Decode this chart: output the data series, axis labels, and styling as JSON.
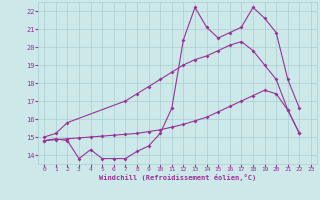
{
  "background_color": "#cce8e8",
  "grid_color": "#aacfcf",
  "line_color": "#993399",
  "xlabel": "Windchill (Refroidissement éolien,°C)",
  "ylim": [
    13.5,
    22.5
  ],
  "xlim": [
    -0.5,
    23.5
  ],
  "yticks": [
    14,
    15,
    16,
    17,
    18,
    19,
    20,
    21,
    22
  ],
  "xticks": [
    0,
    1,
    2,
    3,
    4,
    5,
    6,
    7,
    8,
    9,
    10,
    11,
    12,
    13,
    14,
    15,
    16,
    17,
    18,
    19,
    20,
    21,
    22,
    23
  ],
  "s1_x": [
    0,
    1,
    2,
    3,
    4,
    5,
    6,
    7,
    8,
    9,
    10,
    11,
    12,
    13,
    14,
    15,
    16,
    17,
    18,
    19,
    20,
    21,
    22
  ],
  "s1_y": [
    14.8,
    14.9,
    14.8,
    13.8,
    14.3,
    13.8,
    13.8,
    13.8,
    14.2,
    14.5,
    15.2,
    16.6,
    20.4,
    22.2,
    21.1,
    20.5,
    20.8,
    21.1,
    22.2,
    21.6,
    20.8,
    18.2,
    16.6
  ],
  "s2_x": [
    0,
    1,
    2,
    7,
    8,
    9,
    10,
    11,
    12,
    13,
    14,
    15,
    16,
    17,
    18,
    19,
    20,
    21,
    22
  ],
  "s2_y": [
    15.0,
    15.2,
    15.8,
    17.0,
    17.4,
    17.8,
    18.2,
    18.6,
    19.0,
    19.3,
    19.5,
    19.8,
    20.1,
    20.3,
    19.8,
    19.0,
    18.2,
    16.5,
    15.2
  ],
  "s3_x": [
    0,
    1,
    2,
    3,
    4,
    5,
    6,
    7,
    8,
    9,
    10,
    11,
    12,
    13,
    14,
    15,
    16,
    17,
    18,
    19,
    20,
    21,
    22
  ],
  "s3_y": [
    14.8,
    14.85,
    14.9,
    14.95,
    15.0,
    15.05,
    15.1,
    15.15,
    15.2,
    15.3,
    15.4,
    15.55,
    15.7,
    15.9,
    16.1,
    16.4,
    16.7,
    17.0,
    17.3,
    17.6,
    17.4,
    16.5,
    15.2
  ]
}
